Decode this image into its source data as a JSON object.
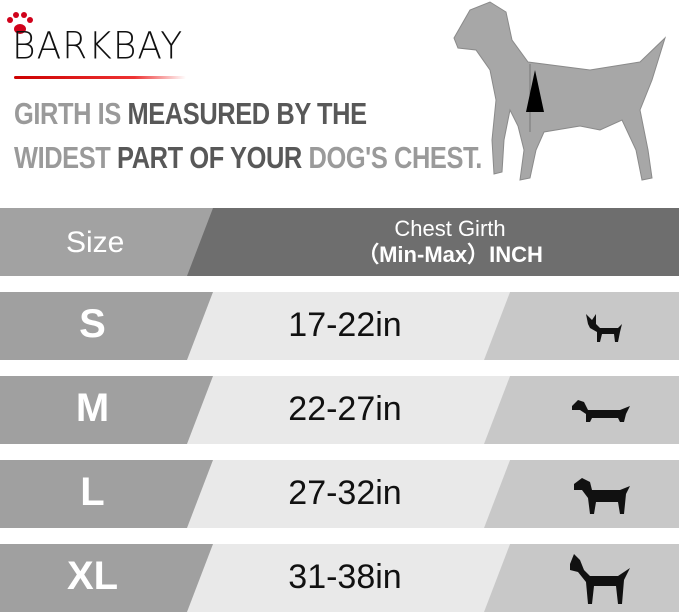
{
  "brand": {
    "name": "BARKBAY",
    "accent": "#d0021b"
  },
  "headline": {
    "line1": [
      {
        "text": "GIRTH IS ",
        "tone": "light"
      },
      {
        "text": "MEASURED BY THE",
        "tone": "dark"
      }
    ],
    "line2": [
      {
        "text": "WIDEST ",
        "tone": "light"
      },
      {
        "text": "PART OF YOUR ",
        "tone": "dark"
      },
      {
        "text": "DOG'S CHEST.",
        "tone": "light"
      }
    ]
  },
  "table": {
    "header": {
      "size": "Size",
      "girth_line1": "Chest Girth",
      "girth_line2": "（Min-Max）INCH"
    },
    "rows": [
      {
        "size": "S",
        "girth": "17-22in",
        "dog_icon": "chihuahua-icon"
      },
      {
        "size": "M",
        "girth": "22-27in",
        "dog_icon": "dachshund-icon"
      },
      {
        "size": "L",
        "girth": "27-32in",
        "dog_icon": "labrador-icon"
      },
      {
        "size": "XL",
        "girth": "31-38in",
        "dog_icon": "great-dane-icon"
      }
    ]
  }
}
